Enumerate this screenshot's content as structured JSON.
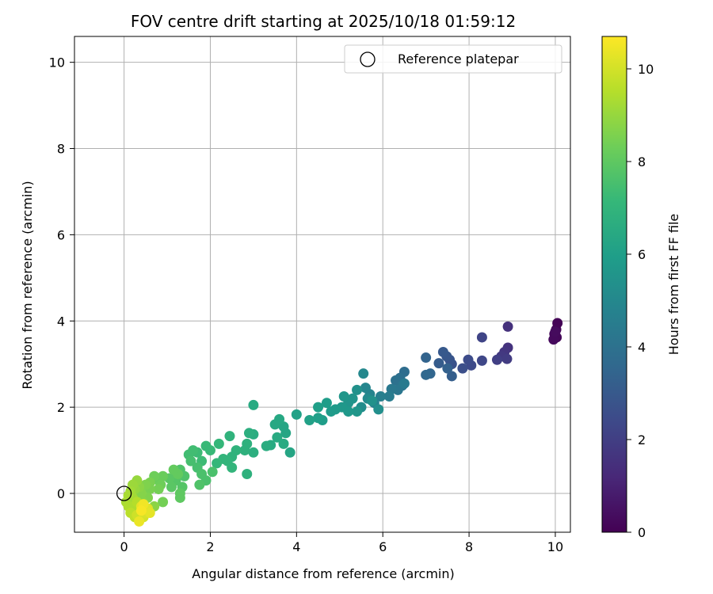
{
  "chart_data": {
    "type": "scatter",
    "title": "FOV centre drift starting at 2025/10/18 01:59:12",
    "xlabel": "Angular distance from reference (arcmin)",
    "ylabel": "Rotation from reference (arcmin)",
    "xlim": [
      -1.15,
      10.35
    ],
    "ylim": [
      -0.9,
      10.6
    ],
    "xticks": [
      0,
      2,
      4,
      6,
      8,
      10
    ],
    "yticks": [
      0,
      2,
      4,
      6,
      8,
      10
    ],
    "grid": true,
    "legend": {
      "position": "top-right",
      "entries": [
        {
          "label": "Reference platepar",
          "marker": "open-circle"
        }
      ]
    },
    "reference_point": {
      "x": 0,
      "y": 0,
      "label": "Reference platepar"
    },
    "colorbar": {
      "label": "Hours from first FF file",
      "min": 0,
      "max": 10.7,
      "ticks": [
        0,
        2,
        4,
        6,
        8,
        10
      ],
      "colormap": "viridis"
    },
    "points": [
      {
        "x": 10.05,
        "y": 3.95,
        "c": 0.05
      },
      {
        "x": 10.02,
        "y": 3.8,
        "c": 0.1
      },
      {
        "x": 9.98,
        "y": 3.7,
        "c": 0.15
      },
      {
        "x": 10.03,
        "y": 3.62,
        "c": 0.2
      },
      {
        "x": 9.96,
        "y": 3.57,
        "c": 0.25
      },
      {
        "x": 10.0,
        "y": 3.75,
        "c": 0.3
      },
      {
        "x": 8.9,
        "y": 3.87,
        "c": 1.5
      },
      {
        "x": 8.9,
        "y": 3.38,
        "c": 1.6
      },
      {
        "x": 8.82,
        "y": 3.28,
        "c": 1.7
      },
      {
        "x": 8.75,
        "y": 3.18,
        "c": 1.8
      },
      {
        "x": 8.88,
        "y": 3.12,
        "c": 1.9
      },
      {
        "x": 8.65,
        "y": 3.1,
        "c": 2.0
      },
      {
        "x": 8.3,
        "y": 3.62,
        "c": 2.2
      },
      {
        "x": 8.3,
        "y": 3.08,
        "c": 2.3
      },
      {
        "x": 8.05,
        "y": 2.97,
        "c": 2.4
      },
      {
        "x": 7.98,
        "y": 3.1,
        "c": 2.5
      },
      {
        "x": 7.85,
        "y": 2.9,
        "c": 2.6
      },
      {
        "x": 7.6,
        "y": 3.0,
        "c": 2.7
      },
      {
        "x": 7.55,
        "y": 3.1,
        "c": 2.8
      },
      {
        "x": 7.48,
        "y": 3.18,
        "c": 2.9
      },
      {
        "x": 7.4,
        "y": 3.28,
        "c": 3.0
      },
      {
        "x": 7.3,
        "y": 3.02,
        "c": 3.1
      },
      {
        "x": 7.6,
        "y": 2.72,
        "c": 3.2
      },
      {
        "x": 7.5,
        "y": 2.9,
        "c": 3.3
      },
      {
        "x": 7.0,
        "y": 3.15,
        "c": 3.4
      },
      {
        "x": 7.1,
        "y": 2.78,
        "c": 3.5
      },
      {
        "x": 7.0,
        "y": 2.75,
        "c": 3.6
      },
      {
        "x": 6.5,
        "y": 2.82,
        "c": 3.8
      },
      {
        "x": 6.4,
        "y": 2.68,
        "c": 3.9
      },
      {
        "x": 6.3,
        "y": 2.62,
        "c": 4.0
      },
      {
        "x": 6.45,
        "y": 2.5,
        "c": 4.1
      },
      {
        "x": 6.35,
        "y": 2.4,
        "c": 4.2
      },
      {
        "x": 6.2,
        "y": 2.42,
        "c": 4.3
      },
      {
        "x": 6.5,
        "y": 2.55,
        "c": 4.4
      },
      {
        "x": 6.15,
        "y": 2.25,
        "c": 4.5
      },
      {
        "x": 5.95,
        "y": 2.25,
        "c": 4.6
      },
      {
        "x": 5.8,
        "y": 2.1,
        "c": 4.7
      },
      {
        "x": 5.7,
        "y": 2.3,
        "c": 4.8
      },
      {
        "x": 5.6,
        "y": 2.45,
        "c": 4.9
      },
      {
        "x": 5.55,
        "y": 2.78,
        "c": 5.0
      },
      {
        "x": 5.65,
        "y": 2.2,
        "c": 5.1
      },
      {
        "x": 5.5,
        "y": 2.0,
        "c": 5.2
      },
      {
        "x": 5.9,
        "y": 1.95,
        "c": 5.3
      },
      {
        "x": 5.75,
        "y": 2.15,
        "c": 5.4
      },
      {
        "x": 5.4,
        "y": 2.4,
        "c": 5.4
      },
      {
        "x": 5.3,
        "y": 2.2,
        "c": 5.5
      },
      {
        "x": 5.2,
        "y": 2.1,
        "c": 5.5
      },
      {
        "x": 5.4,
        "y": 1.9,
        "c": 5.6
      },
      {
        "x": 5.1,
        "y": 2.25,
        "c": 5.6
      },
      {
        "x": 5.05,
        "y": 2.0,
        "c": 5.7
      },
      {
        "x": 5.2,
        "y": 1.9,
        "c": 5.7
      },
      {
        "x": 4.9,
        "y": 1.95,
        "c": 5.8
      },
      {
        "x": 4.8,
        "y": 1.9,
        "c": 5.8
      },
      {
        "x": 4.7,
        "y": 2.1,
        "c": 5.9
      },
      {
        "x": 4.6,
        "y": 1.7,
        "c": 5.9
      },
      {
        "x": 4.5,
        "y": 1.75,
        "c": 6.0
      },
      {
        "x": 4.5,
        "y": 2.0,
        "c": 6.0
      },
      {
        "x": 4.3,
        "y": 1.7,
        "c": 6.1
      },
      {
        "x": 4.0,
        "y": 1.83,
        "c": 6.1
      },
      {
        "x": 3.85,
        "y": 0.95,
        "c": 6.3
      },
      {
        "x": 3.75,
        "y": 1.4,
        "c": 6.3
      },
      {
        "x": 3.7,
        "y": 1.55,
        "c": 6.3
      },
      {
        "x": 3.6,
        "y": 1.72,
        "c": 6.4
      },
      {
        "x": 3.5,
        "y": 1.6,
        "c": 6.4
      },
      {
        "x": 3.55,
        "y": 1.3,
        "c": 6.5
      },
      {
        "x": 3.7,
        "y": 1.15,
        "c": 6.5
      },
      {
        "x": 3.4,
        "y": 1.12,
        "c": 6.5
      },
      {
        "x": 3.3,
        "y": 1.1,
        "c": 6.6
      },
      {
        "x": 3.0,
        "y": 2.05,
        "c": 6.5
      },
      {
        "x": 3.0,
        "y": 1.37,
        "c": 6.6
      },
      {
        "x": 2.9,
        "y": 1.4,
        "c": 6.7
      },
      {
        "x": 3.0,
        "y": 0.95,
        "c": 6.7
      },
      {
        "x": 2.85,
        "y": 1.15,
        "c": 6.8
      },
      {
        "x": 2.8,
        "y": 1.0,
        "c": 6.8
      },
      {
        "x": 2.85,
        "y": 0.45,
        "c": 6.8
      },
      {
        "x": 2.6,
        "y": 1.0,
        "c": 6.9
      },
      {
        "x": 2.5,
        "y": 0.85,
        "c": 6.9
      },
      {
        "x": 2.4,
        "y": 0.75,
        "c": 7.0
      },
      {
        "x": 2.45,
        "y": 1.33,
        "c": 6.9
      },
      {
        "x": 2.3,
        "y": 0.8,
        "c": 7.0
      },
      {
        "x": 2.5,
        "y": 0.6,
        "c": 7.0
      },
      {
        "x": 2.2,
        "y": 1.15,
        "c": 7.1
      },
      {
        "x": 2.15,
        "y": 0.7,
        "c": 7.1
      },
      {
        "x": 2.0,
        "y": 1.0,
        "c": 7.2
      },
      {
        "x": 1.9,
        "y": 1.1,
        "c": 7.2
      },
      {
        "x": 1.8,
        "y": 0.75,
        "c": 7.3
      },
      {
        "x": 1.7,
        "y": 0.95,
        "c": 7.3
      },
      {
        "x": 1.6,
        "y": 1.0,
        "c": 7.4
      },
      {
        "x": 1.5,
        "y": 0.9,
        "c": 7.4
      },
      {
        "x": 1.55,
        "y": 0.75,
        "c": 7.5
      },
      {
        "x": 1.7,
        "y": 0.6,
        "c": 7.5
      },
      {
        "x": 1.8,
        "y": 0.45,
        "c": 7.6
      },
      {
        "x": 1.9,
        "y": 0.3,
        "c": 7.6
      },
      {
        "x": 2.05,
        "y": 0.5,
        "c": 7.6
      },
      {
        "x": 1.75,
        "y": 0.2,
        "c": 7.7
      },
      {
        "x": 1.4,
        "y": 0.4,
        "c": 7.7
      },
      {
        "x": 1.3,
        "y": 0.55,
        "c": 7.7
      },
      {
        "x": 1.2,
        "y": 0.3,
        "c": 7.8
      },
      {
        "x": 1.35,
        "y": 0.15,
        "c": 7.8
      },
      {
        "x": 1.1,
        "y": 0.15,
        "c": 7.9
      },
      {
        "x": 1.05,
        "y": 0.35,
        "c": 7.9
      },
      {
        "x": 1.3,
        "y": 0.0,
        "c": 8.0
      },
      {
        "x": 1.3,
        "y": -0.1,
        "c": 8.0
      },
      {
        "x": 1.25,
        "y": 0.45,
        "c": 8.1
      },
      {
        "x": 1.15,
        "y": 0.55,
        "c": 8.1
      },
      {
        "x": 0.9,
        "y": 0.4,
        "c": 8.2
      },
      {
        "x": 0.8,
        "y": 0.3,
        "c": 8.2
      },
      {
        "x": 0.7,
        "y": 0.4,
        "c": 8.3
      },
      {
        "x": 0.85,
        "y": 0.2,
        "c": 8.3
      },
      {
        "x": 0.9,
        "y": -0.2,
        "c": 8.4
      },
      {
        "x": 0.8,
        "y": 0.1,
        "c": 8.4
      },
      {
        "x": 0.6,
        "y": 0.25,
        "c": 8.5
      },
      {
        "x": 0.6,
        "y": 0.1,
        "c": 8.5
      },
      {
        "x": 0.55,
        "y": -0.1,
        "c": 8.6
      },
      {
        "x": 0.5,
        "y": 0.2,
        "c": 8.6
      },
      {
        "x": 0.4,
        "y": 0.0,
        "c": 8.7
      },
      {
        "x": 0.45,
        "y": -0.2,
        "c": 8.7
      },
      {
        "x": 0.7,
        "y": -0.3,
        "c": 8.8
      },
      {
        "x": 0.35,
        "y": 0.15,
        "c": 8.8
      },
      {
        "x": 0.3,
        "y": 0.3,
        "c": 9.0
      },
      {
        "x": 0.25,
        "y": 0.1,
        "c": 9.0
      },
      {
        "x": 0.2,
        "y": 0.2,
        "c": 9.1
      },
      {
        "x": 0.15,
        "y": 0.05,
        "c": 9.2
      },
      {
        "x": 0.2,
        "y": -0.1,
        "c": 9.2
      },
      {
        "x": 0.1,
        "y": -0.05,
        "c": 9.3
      },
      {
        "x": 0.05,
        "y": -0.2,
        "c": 9.3
      },
      {
        "x": 0.1,
        "y": -0.3,
        "c": 9.4
      },
      {
        "x": 0.2,
        "y": -0.35,
        "c": 9.4
      },
      {
        "x": 0.3,
        "y": -0.2,
        "c": 9.5
      },
      {
        "x": 0.4,
        "y": -0.4,
        "c": 9.5
      },
      {
        "x": 0.15,
        "y": -0.45,
        "c": 9.6
      },
      {
        "x": 0.25,
        "y": -0.55,
        "c": 9.7
      },
      {
        "x": 0.35,
        "y": -0.6,
        "c": 9.8
      },
      {
        "x": 0.3,
        "y": -0.5,
        "c": 9.9
      },
      {
        "x": 0.45,
        "y": -0.55,
        "c": 10.0
      },
      {
        "x": 0.5,
        "y": -0.45,
        "c": 10.1
      },
      {
        "x": 0.55,
        "y": -0.35,
        "c": 10.2
      },
      {
        "x": 0.4,
        "y": -0.3,
        "c": 10.3
      },
      {
        "x": 0.6,
        "y": -0.45,
        "c": 10.3
      },
      {
        "x": 0.35,
        "y": -0.65,
        "c": 10.4
      },
      {
        "x": 0.45,
        "y": -0.25,
        "c": 10.5
      },
      {
        "x": 0.4,
        "y": -0.4,
        "c": 10.6
      }
    ]
  }
}
